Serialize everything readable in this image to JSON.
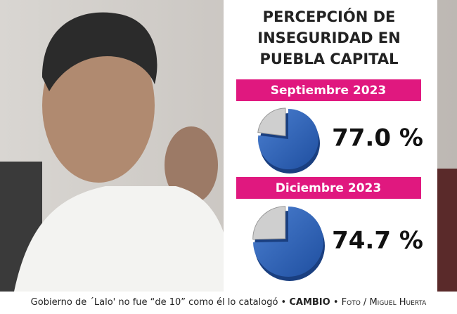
{
  "header": {
    "title_lines": [
      "PERCEPCIÓN DE",
      "INSEGURIDAD EN",
      "PUEBLA CAPITAL"
    ]
  },
  "panels": [
    {
      "period": "Septiembre 2023",
      "value": 77.0,
      "value_label": "77.0 %"
    },
    {
      "period": "Diciembre 2023",
      "value": 74.7,
      "value_label": "74.7 %"
    }
  ],
  "caption": {
    "text": "Gobierno de ´Lalo' no fue “de 10” como él lo catalogó",
    "separator": "•",
    "brand": "CAMBIO",
    "credit": "Foto / Miguel Huerta"
  }
}
